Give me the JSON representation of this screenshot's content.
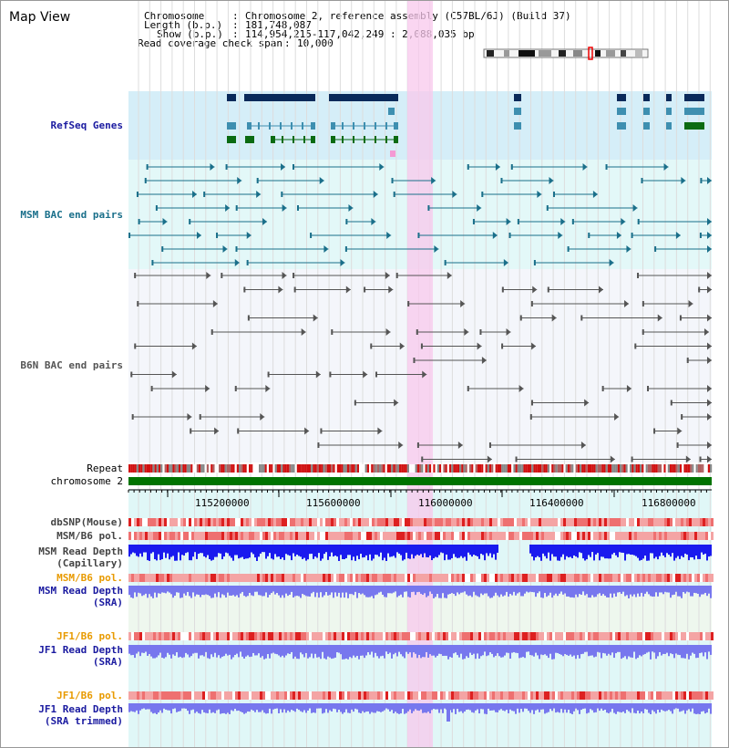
{
  "title": "Map View",
  "header": {
    "chromosome_key": "Chromosome",
    "chromosome_val": "Chromosome 2, reference assembly (C57BL/6J) (Build 37)",
    "length_key": "Length (b.p.)",
    "length_val": "181,748,087",
    "show_key": "Show (b.p.)",
    "show_val": "114,954,215-117,042,249 : 2,088,035 bp",
    "coverage_key": "Read coverage check span",
    "coverage_val": "10,000"
  },
  "tracks": {
    "refseq": "RefSeq Genes",
    "msm_bac": "MSM BAC end pairs",
    "b6n_bac": "B6N BAC end pairs",
    "repeat": "Repeat",
    "chromosome": "chromosome 2",
    "dbsnp": "dbSNP(Mouse)",
    "msm_b6_pol_1": "MSM/B6 pol.",
    "msm_depth_cap_1": "MSM Read Depth",
    "msm_depth_cap_2": "(Capillary)",
    "msm_b6_pol_2": "MSM/B6 pol.",
    "msm_depth_sra_1": "MSM Read Depth",
    "msm_depth_sra_2": "(SRA)",
    "jf1_b6_pol_1": "JF1/B6 pol.",
    "jf1_depth_sra_1": "JF1 Read Depth",
    "jf1_depth_sra_2": "(SRA)",
    "jf1_b6_pol_2": "JF1/B6 pol.",
    "jf1_depth_trim_1": "JF1 Read Depth",
    "jf1_depth_trim_2": "(SRA trimmed)"
  },
  "axis": {
    "ticks": [
      "115200000",
      "115600000",
      "116000000",
      "116400000",
      "116800000"
    ]
  },
  "colors": {
    "refseq_bg": "#d5eef8",
    "msm_bg": "#e3f8f8",
    "b6n_bg": "#f4f6fb",
    "gene_dark": "#0a2a5a",
    "gene_mid": "#3e8fb0",
    "gene_green": "#0b6b12",
    "msm_line": "#1a6f8a",
    "b6n_line": "#555555",
    "highlight": "#f8c8ec",
    "chrom_green": "#007300",
    "depth_blue": "#1a1aee",
    "sra_blue": "#7777ee"
  }
}
